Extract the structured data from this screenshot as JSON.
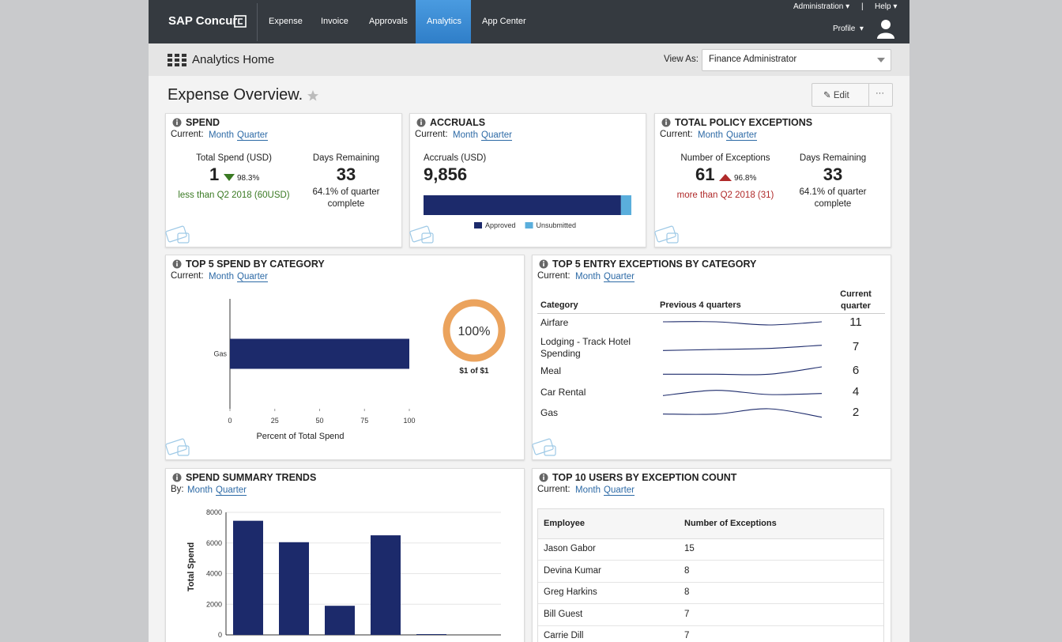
{
  "nav": {
    "brand": "SAP Concur",
    "items": [
      "Expense",
      "Invoice",
      "Approvals",
      "Analytics",
      "App Center"
    ],
    "administration": "Administration",
    "separator": "|",
    "help": "Help",
    "profile": "Profile"
  },
  "subheader": {
    "title": "Analytics Home",
    "view_as": "View As:",
    "role": "Finance Administrator"
  },
  "overview": {
    "title": "Expense Overview.",
    "edit": "Edit",
    "more": "···"
  },
  "spend": {
    "title": "SPEND",
    "current": "Current:",
    "month": "Month",
    "quarter": "Quarter",
    "total_label": "Total Spend (USD)",
    "total": "1",
    "change": "98.3%",
    "comparison": "less than Q2 2018 (60USD)",
    "days_label": "Days Remaining",
    "days": "33",
    "days_note": "64.1% of quarter complete"
  },
  "accruals": {
    "title": "ACCRUALS",
    "current": "Current:",
    "month": "Month",
    "quarter": "Quarter",
    "label": "Accruals (USD)",
    "total": "9,856",
    "chart_data": {
      "type": "stacked-bar",
      "xlim": [
        0,
        100
      ],
      "series": [
        {
          "name": "Approved",
          "color": "#1c2a6b",
          "values": [
            95
          ]
        },
        {
          "name": "Unsubmitted",
          "color": "#5aaedc",
          "values": [
            5
          ]
        }
      ]
    }
  },
  "policy": {
    "title": "TOTAL POLICY EXCEPTIONS",
    "current": "Current:",
    "month": "Month",
    "quarter": "Quarter",
    "count_label": "Number of Exceptions",
    "count": "61",
    "change": "96.8%",
    "comparison": "more than Q2 2018 (31)",
    "days_label": "Days Remaining",
    "days": "33",
    "days_note": "64.1% of quarter complete"
  },
  "top_spend": {
    "title": "TOP 5 SPEND BY CATEGORY",
    "current": "Current:",
    "month": "Month",
    "quarter": "Quarter",
    "chart_data": {
      "type": "hbar",
      "categories": [
        "Gas"
      ],
      "values": [
        100
      ],
      "color": "#1c2a6b",
      "xlim": [
        0,
        100
      ],
      "xticks": [
        0,
        25,
        50,
        75,
        100
      ],
      "xlabel": "Percent of Total Spend"
    },
    "donut": {
      "value": 100,
      "label": "100%",
      "color": "#eba35d",
      "caption": "$1 of $1"
    }
  },
  "entry_exceptions": {
    "title": "TOP 5 ENTRY EXCEPTIONS BY CATEGORY",
    "current": "Current:",
    "month": "Month",
    "quarter": "Quarter",
    "columns": [
      "Category",
      "Previous 4 quarters",
      "Current quarter"
    ],
    "trend_range": [
      0,
      15
    ],
    "rows": [
      {
        "category": "Airfare",
        "trend": [
          9,
          9,
          6,
          9
        ],
        "current": "11"
      },
      {
        "category": "Lodging - Track Hotel Spending",
        "trend": [
          5,
          6,
          7,
          10
        ],
        "current": "7"
      },
      {
        "category": "Meal",
        "trend": [
          5,
          5,
          5,
          12
        ],
        "current": "6"
      },
      {
        "category": "Car Rental",
        "trend": [
          5,
          10,
          6,
          7
        ],
        "current": "4"
      },
      {
        "category": "Gas",
        "trend": [
          7,
          7,
          12,
          4
        ],
        "current": "2"
      }
    ]
  },
  "spend_trends": {
    "title": "SPEND SUMMARY TRENDS",
    "by": "By:",
    "month": "Month",
    "quarter": "Quarter",
    "chart_data": {
      "type": "bar",
      "categories": [
        null,
        null,
        null,
        null,
        null
      ],
      "values": [
        7450,
        6050,
        1900,
        6500,
        50
      ],
      "color": "#1c2a6b",
      "ylim": [
        0,
        8000
      ],
      "yticks": [
        0,
        2000,
        4000,
        6000,
        8000
      ],
      "ylabel": "Total Spend",
      "grid": true
    }
  },
  "top_users": {
    "title": "TOP 10 USERS BY EXCEPTION COUNT",
    "current": "Current:",
    "month": "Month",
    "quarter": "Quarter",
    "columns": [
      "Employee",
      "Number of Exceptions"
    ],
    "rows": [
      [
        "Jason Gabor",
        "15"
      ],
      [
        "Devina Kumar",
        "8"
      ],
      [
        "Greg Harkins",
        "8"
      ],
      [
        "Bill Guest",
        "7"
      ],
      [
        "Carrie Dill",
        "7"
      ]
    ]
  }
}
